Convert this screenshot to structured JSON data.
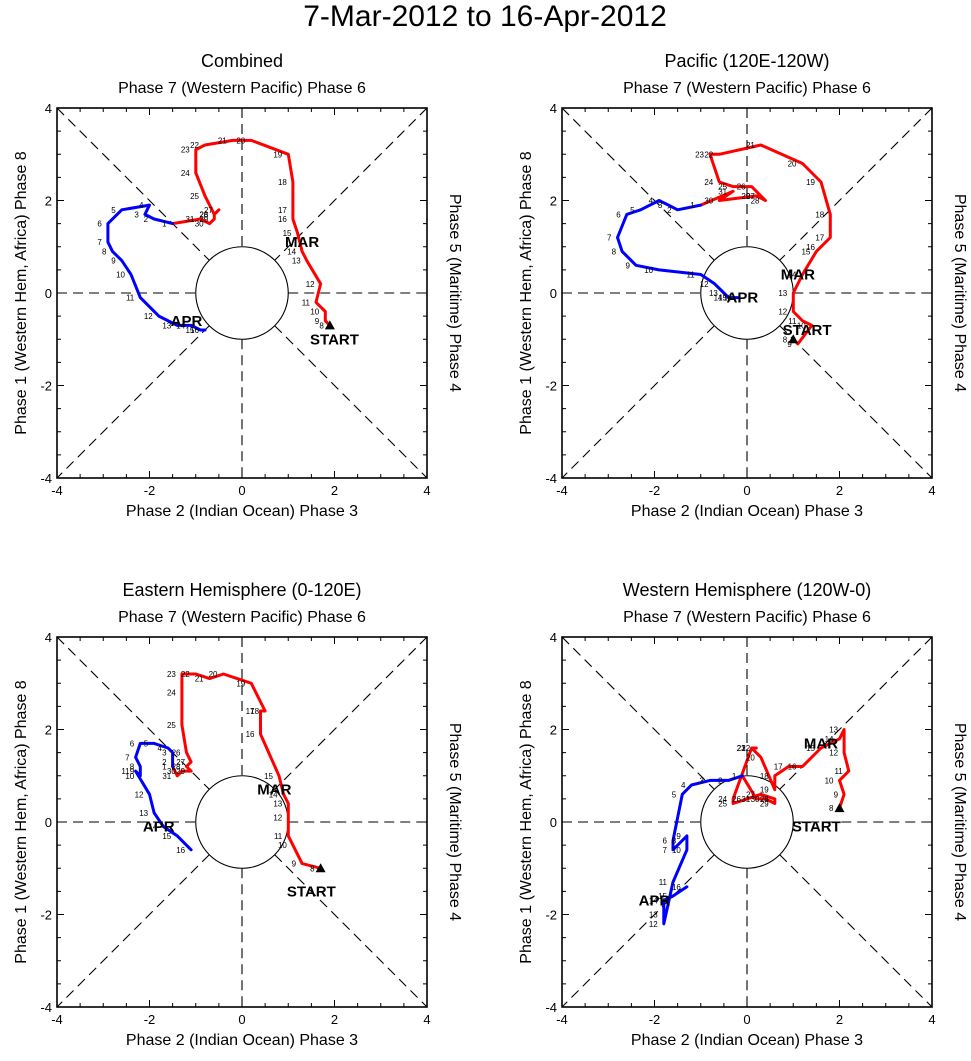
{
  "page_title": "7-Mar-2012 to 16-Apr-2012",
  "colors": {
    "mar": "#ff0000",
    "apr": "#0000ff",
    "axes": "#000000",
    "start": "#000000"
  },
  "axis_labels": {
    "top": "Phase 7 (Western Pacific) Phase 6",
    "bottom": "Phase 2 (Indian Ocean) Phase 3",
    "left": "Phase 1 (Western Hem, Africa) Phase 8",
    "right": "Phase 5 (Maritime) Phase 4"
  },
  "tick_labels": [
    "-4",
    "-2",
    "0",
    "2",
    "4"
  ],
  "month_labels": {
    "start": "START",
    "mar": "MAR",
    "apr": "APR"
  },
  "chart_data": [
    {
      "type": "line",
      "title": "Combined",
      "xlim": [
        -4,
        4
      ],
      "ylim": [
        -4,
        4
      ],
      "start_label_at": [
        2.0,
        -1.0
      ],
      "mar_label_at": [
        1.3,
        1.1
      ],
      "apr_label_at": [
        -1.2,
        -0.6
      ],
      "series": [
        {
          "name": "MAR",
          "color": "#ff0000",
          "days": [
            "8",
            "9",
            "10",
            "11",
            "12",
            "13",
            "14",
            "15",
            "16",
            "17",
            "18",
            "19",
            "20",
            "21",
            "22",
            "23",
            "24",
            "25",
            "26",
            "27",
            "28",
            "29",
            "30",
            "31"
          ],
          "points": [
            [
              1.9,
              -0.7
            ],
            [
              1.8,
              -0.6
            ],
            [
              1.8,
              -0.4
            ],
            [
              1.6,
              -0.2
            ],
            [
              1.7,
              0.2
            ],
            [
              1.4,
              0.7
            ],
            [
              1.3,
              0.9
            ],
            [
              1.2,
              1.3
            ],
            [
              1.1,
              1.6
            ],
            [
              1.1,
              1.8
            ],
            [
              1.1,
              2.4
            ],
            [
              1.0,
              3.0
            ],
            [
              0.2,
              3.3
            ],
            [
              -0.2,
              3.3
            ],
            [
              -0.8,
              3.2
            ],
            [
              -1.0,
              3.1
            ],
            [
              -1.0,
              2.6
            ],
            [
              -0.8,
              2.1
            ],
            [
              -0.6,
              1.7
            ],
            [
              -0.5,
              1.8
            ],
            [
              -0.6,
              1.7
            ],
            [
              -0.6,
              1.6
            ],
            [
              -0.7,
              1.5
            ],
            [
              -0.9,
              1.6
            ]
          ]
        },
        {
          "name": "APR",
          "color": "#0000ff",
          "days": [
            "1",
            "2",
            "3",
            "4",
            "5",
            "6",
            "7",
            "8",
            "9",
            "10",
            "11",
            "12",
            "13",
            "14",
            "15",
            "16"
          ],
          "points": [
            [
              -1.5,
              1.5
            ],
            [
              -1.9,
              1.6
            ],
            [
              -2.1,
              1.7
            ],
            [
              -2.0,
              1.9
            ],
            [
              -2.6,
              1.8
            ],
            [
              -2.9,
              1.5
            ],
            [
              -2.9,
              1.1
            ],
            [
              -2.8,
              0.9
            ],
            [
              -2.6,
              0.7
            ],
            [
              -2.4,
              0.4
            ],
            [
              -2.2,
              -0.1
            ],
            [
              -1.8,
              -0.5
            ],
            [
              -1.4,
              -0.7
            ],
            [
              -1.1,
              -0.7
            ],
            [
              -0.9,
              -0.8
            ],
            [
              -0.8,
              -0.8
            ]
          ]
        }
      ]
    },
    {
      "type": "line",
      "title": "Pacific (120E-120W)",
      "xlim": [
        -4,
        4
      ],
      "ylim": [
        -4,
        4
      ],
      "start_label_at": [
        1.3,
        -0.8
      ],
      "mar_label_at": [
        1.1,
        0.4
      ],
      "apr_label_at": [
        -0.1,
        -0.1
      ],
      "series": [
        {
          "name": "MAR",
          "color": "#ff0000",
          "days": [
            "8",
            "9",
            "10",
            "11",
            "12",
            "13",
            "14",
            "15",
            "16",
            "17",
            "18",
            "19",
            "20",
            "21",
            "22",
            "23",
            "24",
            "25",
            "26",
            "27",
            "28",
            "29",
            "30",
            "31"
          ],
          "points": [
            [
              1.0,
              -1.0
            ],
            [
              1.1,
              -1.1
            ],
            [
              1.4,
              -0.7
            ],
            [
              1.2,
              -0.6
            ],
            [
              1.0,
              -0.4
            ],
            [
              1.0,
              0.0
            ],
            [
              1.2,
              0.4
            ],
            [
              1.5,
              0.9
            ],
            [
              1.6,
              1.0
            ],
            [
              1.8,
              1.2
            ],
            [
              1.8,
              1.7
            ],
            [
              1.6,
              2.4
            ],
            [
              1.2,
              2.8
            ],
            [
              0.3,
              3.2
            ],
            [
              -0.6,
              3.0
            ],
            [
              -0.8,
              3.0
            ],
            [
              -0.6,
              2.4
            ],
            [
              -0.3,
              2.3
            ],
            [
              0.1,
              2.3
            ],
            [
              0.3,
              2.1
            ],
            [
              0.4,
              2.0
            ],
            [
              0.2,
              2.1
            ],
            [
              -0.6,
              2.0
            ],
            [
              -0.3,
              2.2
            ]
          ]
        },
        {
          "name": "APR",
          "color": "#0000ff",
          "days": [
            "1",
            "2",
            "3",
            "4",
            "5",
            "6",
            "7",
            "8",
            "9",
            "10",
            "11",
            "12",
            "13",
            "14",
            "15",
            "16"
          ],
          "points": [
            [
              -1.0,
              1.9
            ],
            [
              -1.5,
              1.8
            ],
            [
              -1.7,
              1.9
            ],
            [
              -1.9,
              2.0
            ],
            [
              -2.3,
              1.8
            ],
            [
              -2.6,
              1.7
            ],
            [
              -2.8,
              1.2
            ],
            [
              -2.7,
              0.9
            ],
            [
              -2.4,
              0.6
            ],
            [
              -1.9,
              0.5
            ],
            [
              -1.0,
              0.4
            ],
            [
              -0.7,
              0.2
            ],
            [
              -0.5,
              0.0
            ],
            [
              -0.4,
              -0.1
            ],
            [
              -0.3,
              -0.1
            ],
            [
              -0.2,
              -0.1
            ]
          ]
        }
      ]
    },
    {
      "type": "line",
      "title": "Eastern Hemisphere (0-120E)",
      "xlim": [
        -4,
        4
      ],
      "ylim": [
        -4,
        4
      ],
      "start_label_at": [
        1.5,
        -1.5
      ],
      "mar_label_at": [
        0.7,
        0.7
      ],
      "apr_label_at": [
        -1.8,
        -0.1
      ],
      "series": [
        {
          "name": "MAR",
          "color": "#ff0000",
          "days": [
            "8",
            "9",
            "10",
            "11",
            "12",
            "13",
            "14",
            "15",
            "16",
            "17",
            "18",
            "19",
            "20",
            "21",
            "22",
            "23",
            "24",
            "25",
            "26",
            "27",
            "28",
            "29",
            "30",
            "31"
          ],
          "points": [
            [
              1.7,
              -1.0
            ],
            [
              1.3,
              -0.9
            ],
            [
              1.1,
              -0.5
            ],
            [
              1.0,
              -0.3
            ],
            [
              1.0,
              0.1
            ],
            [
              1.0,
              0.4
            ],
            [
              0.9,
              0.6
            ],
            [
              0.8,
              1.0
            ],
            [
              0.4,
              1.9
            ],
            [
              0.4,
              2.4
            ],
            [
              0.5,
              2.4
            ],
            [
              0.2,
              3.0
            ],
            [
              -0.4,
              3.2
            ],
            [
              -0.7,
              3.1
            ],
            [
              -1.0,
              3.2
            ],
            [
              -1.3,
              3.2
            ],
            [
              -1.3,
              2.8
            ],
            [
              -1.3,
              2.1
            ],
            [
              -1.2,
              1.5
            ],
            [
              -1.1,
              1.3
            ],
            [
              -1.2,
              1.2
            ],
            [
              -1.1,
              1.1
            ],
            [
              -1.3,
              1.1
            ],
            [
              -1.4,
              1.0
            ]
          ]
        },
        {
          "name": "APR",
          "color": "#0000ff",
          "days": [
            "1",
            "2",
            "3",
            "4",
            "5",
            "6",
            "7",
            "8",
            "9",
            "10",
            "11",
            "12",
            "13",
            "14",
            "15",
            "16"
          ],
          "points": [
            [
              -1.5,
              1.2
            ],
            [
              -1.5,
              1.3
            ],
            [
              -1.5,
              1.5
            ],
            [
              -1.6,
              1.6
            ],
            [
              -1.9,
              1.7
            ],
            [
              -2.2,
              1.7
            ],
            [
              -2.3,
              1.4
            ],
            [
              -2.2,
              1.2
            ],
            [
              -2.2,
              1.1
            ],
            [
              -2.2,
              1.0
            ],
            [
              -2.3,
              1.1
            ],
            [
              -2.0,
              0.6
            ],
            [
              -1.9,
              0.2
            ],
            [
              -1.7,
              -0.1
            ],
            [
              -1.4,
              -0.3
            ],
            [
              -1.1,
              -0.6
            ]
          ]
        }
      ]
    },
    {
      "type": "line",
      "title": "Western Hemisphere (120W-0)",
      "xlim": [
        -4,
        4
      ],
      "ylim": [
        -4,
        4
      ],
      "start_label_at": [
        1.5,
        -0.1
      ],
      "mar_label_at": [
        1.6,
        1.7
      ],
      "apr_label_at": [
        -2.0,
        -1.7
      ],
      "series": [
        {
          "name": "MAR",
          "color": "#ff0000",
          "days": [
            "8",
            "9",
            "10",
            "11",
            "12",
            "13",
            "14",
            "15",
            "16",
            "17",
            "18",
            "19",
            "20",
            "21",
            "22",
            "23",
            "24",
            "25",
            "26",
            "27",
            "28",
            "29",
            "30",
            "31"
          ],
          "points": [
            [
              2.0,
              0.3
            ],
            [
              2.1,
              0.6
            ],
            [
              2.0,
              0.9
            ],
            [
              2.2,
              1.1
            ],
            [
              2.1,
              1.5
            ],
            [
              2.1,
              2.0
            ],
            [
              2.0,
              1.8
            ],
            [
              1.6,
              1.6
            ],
            [
              1.2,
              1.2
            ],
            [
              0.9,
              1.2
            ],
            [
              0.6,
              1.0
            ],
            [
              0.6,
              0.7
            ],
            [
              0.3,
              1.4
            ],
            [
              0.1,
              1.6
            ],
            [
              0.2,
              1.6
            ],
            [
              0.1,
              1.6
            ],
            [
              -0.3,
              0.5
            ],
            [
              -0.3,
              0.4
            ],
            [
              0.0,
              0.5
            ],
            [
              0.3,
              0.6
            ],
            [
              0.6,
              0.5
            ],
            [
              0.6,
              0.4
            ],
            [
              0.4,
              0.5
            ],
            [
              0.2,
              0.5
            ]
          ]
        },
        {
          "name": "APR",
          "color": "#0000ff",
          "days": [
            "1",
            "2",
            "3",
            "4",
            "5",
            "6",
            "7",
            "8",
            "9",
            "10",
            "11",
            "12",
            "13",
            "14",
            "15",
            "16"
          ],
          "points": [
            [
              -0.1,
              1.0
            ],
            [
              -0.4,
              0.9
            ],
            [
              -0.8,
              0.9
            ],
            [
              -1.2,
              0.8
            ],
            [
              -1.4,
              0.6
            ],
            [
              -1.6,
              -0.4
            ],
            [
              -1.6,
              -0.6
            ],
            [
              -1.4,
              -0.4
            ],
            [
              -1.3,
              -0.3
            ],
            [
              -1.3,
              -0.6
            ],
            [
              -1.6,
              -1.3
            ],
            [
              -1.8,
              -2.2
            ],
            [
              -1.8,
              -2.0
            ],
            [
              -1.8,
              -1.7
            ],
            [
              -1.6,
              -1.6
            ],
            [
              -1.3,
              -1.4
            ]
          ]
        }
      ]
    }
  ]
}
